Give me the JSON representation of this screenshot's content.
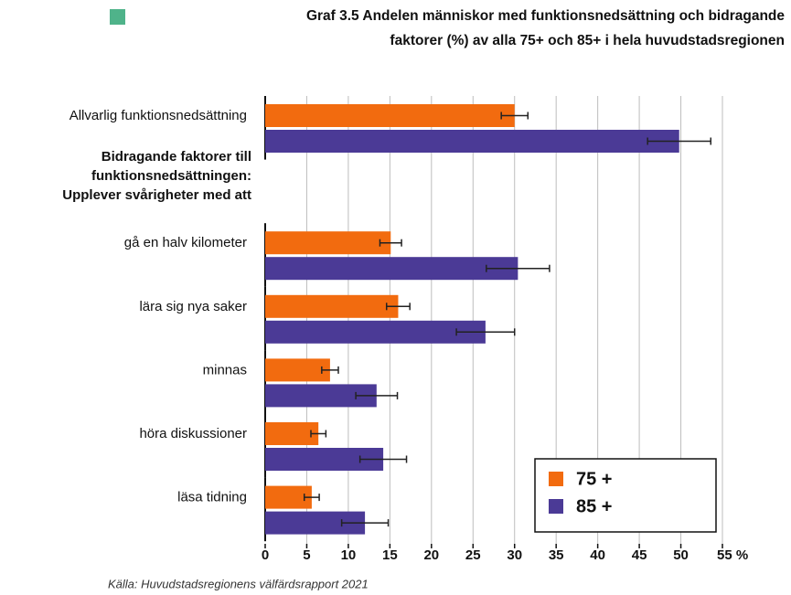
{
  "chart_data": {
    "type": "hbar",
    "title": [
      "Graf 3.5 Andelen människor med funktionsnedsättning och bidragande",
      "faktorer (%) av alla 75+ och 85+ i hela huvudstadsregionen"
    ],
    "title_marker_color": "#4fb38a",
    "categories": [
      "Allvarlig funktionsnedsättning",
      "gå en halv kilometer",
      "lära sig nya saker",
      "minnas",
      "höra diskussioner",
      "läsa tidning"
    ],
    "group_label": [
      "Bidragande faktorer till",
      "funktionsnedsättningen:",
      "Upplever svårigheter med att"
    ],
    "series": [
      {
        "name": "75 +",
        "color": "#f26b0f",
        "values": [
          30.0,
          15.1,
          16.0,
          7.8,
          6.4,
          5.6
        ],
        "errors": [
          1.6,
          1.3,
          1.4,
          1.0,
          0.9,
          0.9
        ]
      },
      {
        "name": "85 +",
        "color": "#4b3a96",
        "values": [
          49.8,
          30.4,
          26.5,
          13.4,
          14.2,
          12.0
        ],
        "errors": [
          3.8,
          3.8,
          3.5,
          2.5,
          2.8,
          2.8
        ]
      }
    ],
    "xlim": [
      0,
      55
    ],
    "xticks": [
      0,
      5,
      10,
      15,
      20,
      25,
      30,
      35,
      40,
      45,
      50,
      {
        "value": 55,
        "label": "55 %"
      }
    ],
    "grid": true,
    "legend": "lower right",
    "source": "Källa: Huvudstadsregionens välfärdsrapport 2021"
  }
}
